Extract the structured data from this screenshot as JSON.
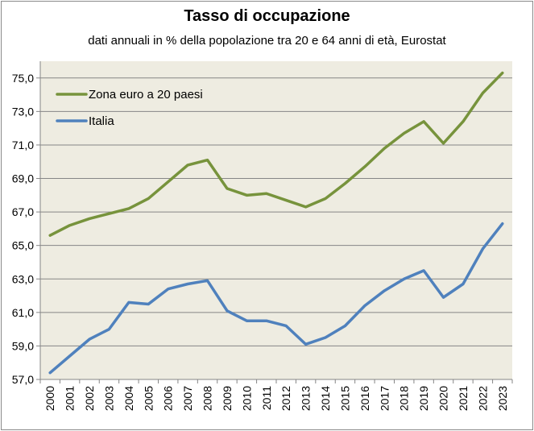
{
  "chart_data": {
    "type": "line",
    "title": "Tasso di occupazione",
    "subtitle": "dati annuali in % della popolazione tra 20 e 64 anni di età, Eurostat",
    "xlabel": "",
    "ylabel": "",
    "x": [
      "2000",
      "2001",
      "2002",
      "2003",
      "2004",
      "2005",
      "2006",
      "2007",
      "2008",
      "2009",
      "2010",
      "2011",
      "2012",
      "2013",
      "2014",
      "2015",
      "2016",
      "2017",
      "2018",
      "2019",
      "2020",
      "2021",
      "2022",
      "2023"
    ],
    "yticks": [
      "57,0",
      "59,0",
      "61,0",
      "63,0",
      "65,0",
      "67,0",
      "69,0",
      "71,0",
      "73,0",
      "75,0"
    ],
    "ylim": [
      57,
      76
    ],
    "grid": true,
    "legend": "top-left",
    "series": [
      {
        "name": "Zona euro a 20 paesi",
        "color": "#77933c",
        "values": [
          65.6,
          66.2,
          66.6,
          66.9,
          67.2,
          67.8,
          68.8,
          69.8,
          70.1,
          68.4,
          68.0,
          68.1,
          67.7,
          67.3,
          67.8,
          68.7,
          69.7,
          70.8,
          71.7,
          72.4,
          71.1,
          72.4,
          74.1,
          75.3
        ]
      },
      {
        "name": "Italia",
        "color": "#4f81bd",
        "values": [
          57.4,
          58.4,
          59.4,
          60.0,
          61.6,
          61.5,
          62.4,
          62.7,
          62.9,
          61.1,
          60.5,
          60.5,
          60.2,
          59.1,
          59.5,
          60.2,
          61.4,
          62.3,
          63.0,
          63.5,
          61.9,
          62.7,
          64.8,
          66.3
        ]
      }
    ],
    "plot_background": "#eeece1",
    "gridline_color": "#868686"
  }
}
